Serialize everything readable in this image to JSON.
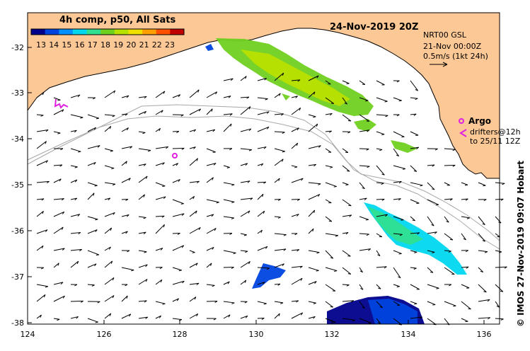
{
  "title": "24-Nov-2019 20Z",
  "colorbar": {
    "title": "4h comp, p50, All Sats",
    "ticks": [
      "13",
      "14",
      "15",
      "16",
      "17",
      "18",
      "19",
      "20",
      "21",
      "22",
      "23"
    ],
    "colors": [
      "#00008c",
      "#0044e0",
      "#0090ff",
      "#00d8f0",
      "#30e090",
      "#70d020",
      "#b8e000",
      "#f0e000",
      "#ffa000",
      "#ff5000",
      "#c00000"
    ]
  },
  "info": {
    "line1": "NRT00 GSL",
    "line2": "21-Nov 00:00Z",
    "line3": "0.5m/s (1kt 24h)"
  },
  "argo": {
    "label": "Argo",
    "drifters_line1": "drifters@12h",
    "drifters_line2": "to 25/11 12Z"
  },
  "credit": "© IMOS 27-Nov-2019 09:07 Hobart",
  "axes": {
    "x_ticks": [
      "124",
      "126",
      "128",
      "130",
      "132",
      "134",
      "136"
    ],
    "y_ticks": [
      "-32",
      "-33",
      "-34",
      "-35",
      "-36",
      "-37",
      "-38"
    ],
    "lon_range": [
      124,
      136.5
    ],
    "lat_range": [
      -31.4,
      -38.2
    ]
  },
  "colors": {
    "land": "#fcc896",
    "arrow": "#000000",
    "argo": "#e020e0",
    "isobath": "#a8a8a8"
  }
}
